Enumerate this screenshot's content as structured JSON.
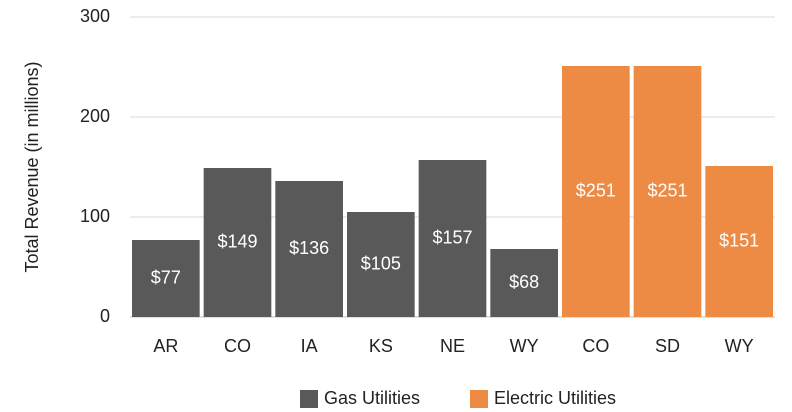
{
  "chart_data": {
    "type": "bar",
    "y_label": "Total Revenue (in millions)",
    "categories": [
      "AR",
      "CO",
      "IA",
      "KS",
      "NE",
      "WY",
      "CO",
      "SD",
      "WY"
    ],
    "series": [
      {
        "name": "Gas Utilities",
        "color": "#595959",
        "values": [
          77,
          149,
          136,
          105,
          157,
          68,
          null,
          null,
          null
        ],
        "value_labels": [
          "$77",
          "$149",
          "$136",
          "$105",
          "$157",
          "$68",
          null,
          null,
          null
        ]
      },
      {
        "name": "Electric Utilities",
        "color": "#ED8B45",
        "values": [
          null,
          null,
          null,
          null,
          null,
          null,
          251,
          251,
          151
        ],
        "value_labels": [
          null,
          null,
          null,
          null,
          null,
          null,
          "$251",
          "$251",
          "$151"
        ]
      }
    ],
    "ylim": [
      0,
      300
    ],
    "yticks": [
      0,
      100,
      200,
      300
    ],
    "grid": true,
    "legend": "bottom"
  }
}
